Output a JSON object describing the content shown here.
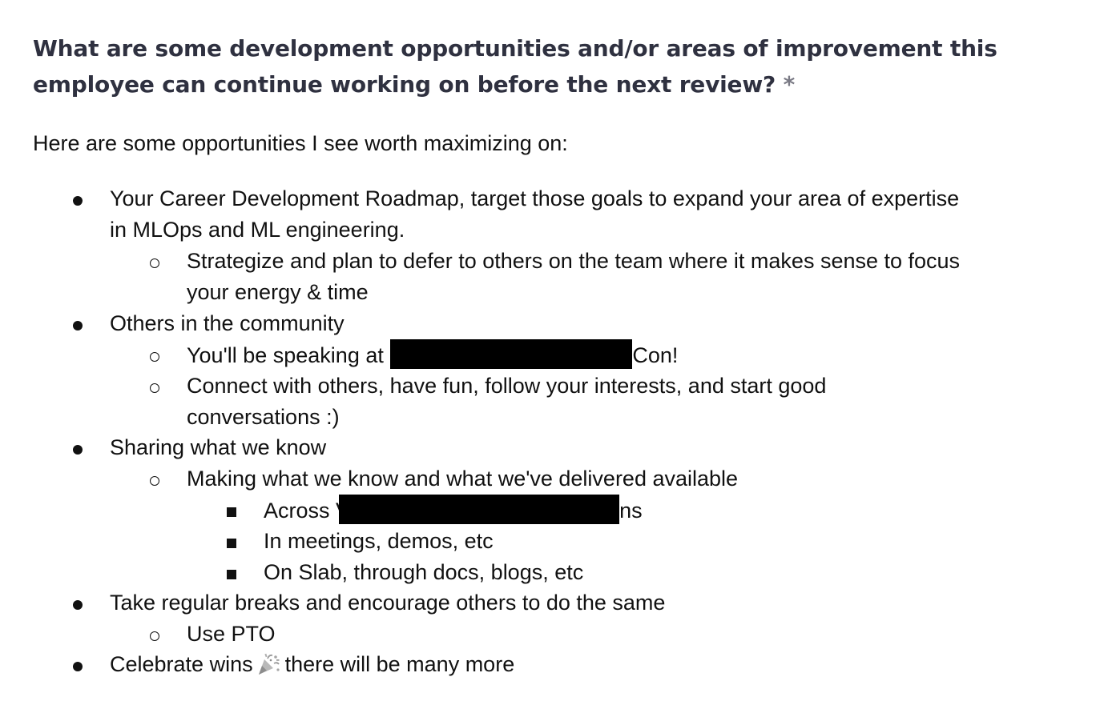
{
  "question": {
    "text": "What are some development opportunities and/or areas of improvement this employee can continue working on before the next review?",
    "required_marker": "*"
  },
  "answer": {
    "intro": "Here are some opportunities I see worth maximizing on:",
    "items": [
      {
        "text_line1": "Your Career Development Roadmap, target those goals to expand your area of expertise",
        "text_line2": "in MLOps and ML engineering.",
        "children": [
          {
            "text_line1": "Strategize and plan to defer to others on the team where it makes sense to focus",
            "text_line2": "your energy & time"
          }
        ]
      },
      {
        "text": "Others in the community",
        "children": [
          {
            "prefix": "You'll be speaking at",
            "prefix_tail": "(",
            "suffix": "Con!"
          },
          {
            "text_line1": "Connect with others, have fun, follow your interests, and start good",
            "text_line2": "conversations :)"
          }
        ]
      },
      {
        "text": "Sharing what we know",
        "children": [
          {
            "text": "Making what we know and what we've delivered available",
            "children": [
              {
                "prefix": "Across",
                "prefix_tail": "V",
                "suffix": "ns"
              },
              {
                "text": "In meetings, demos, etc"
              },
              {
                "text": "On Slab, through docs, blogs, etc"
              }
            ]
          }
        ]
      },
      {
        "text": "Take regular breaks and encourage others to do the same",
        "children": [
          {
            "text": "Use PTO"
          }
        ]
      },
      {
        "prefix": "Celebrate wins",
        "emoji": "party-popper-icon",
        "suffix": "there will be many more"
      }
    ]
  },
  "colors": {
    "question_text": "#2f3140",
    "required_marker": "#7a7a85",
    "body_text": "#111111",
    "redaction": "#000000"
  }
}
